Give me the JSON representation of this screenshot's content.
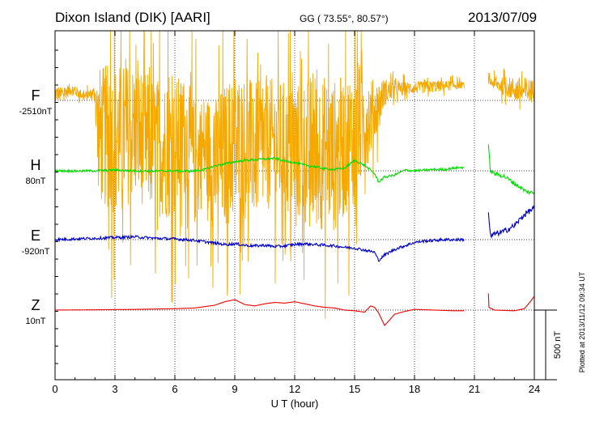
{
  "chart_data": {
    "type": "line",
    "title": "Dixon Island (DIK)  [AARI]",
    "coordinates": "GG ( 73.55°,  80.57°)",
    "date": "2013/07/09",
    "xlabel": "U T (hour)",
    "xlim": [
      0,
      24
    ],
    "xticks": [
      0,
      3,
      6,
      9,
      12,
      15,
      18,
      21,
      24
    ],
    "xtick_labels": [
      "0",
      "3",
      "6",
      "9",
      "12",
      "15",
      "18",
      "21",
      "24"
    ],
    "scale_bar": "500 nT",
    "plotted_note": "Plotted at 2013/11/12 09:34 UT",
    "grid": true,
    "series": [
      {
        "name": "F",
        "baseline": "-2510nT",
        "color": "#f5a800",
        "style": "noisy",
        "x": [
          0,
          0.3,
          0.8,
          1.5,
          2.0,
          2.2,
          3,
          4,
          5,
          6,
          6.5,
          7,
          7.5,
          8,
          9,
          10,
          11,
          12,
          13,
          14,
          15,
          15.5,
          16,
          16.5,
          17,
          18,
          19,
          20,
          20.5
        ],
        "y": [
          50,
          40,
          80,
          30,
          60,
          -250,
          -280,
          -220,
          -330,
          -350,
          -250,
          -450,
          -330,
          -480,
          -320,
          -360,
          -300,
          -380,
          -360,
          -400,
          -250,
          -150,
          -80,
          60,
          80,
          90,
          100,
          110,
          110
        ],
        "amp": [
          120,
          100,
          80,
          60,
          80,
          900,
          1000,
          900,
          900,
          950,
          800,
          850,
          700,
          900,
          1000,
          900,
          850,
          900,
          1050,
          1000,
          900,
          700,
          400,
          180,
          100,
          80,
          80,
          60,
          40
        ],
        "gap": [
          20.5,
          21.7
        ],
        "x2": [
          21.7,
          22,
          22.5,
          23,
          23.5,
          24
        ],
        "y2": [
          140,
          120,
          100,
          80,
          60,
          80
        ],
        "amp2": [
          50,
          80,
          120,
          160,
          200,
          120
        ]
      },
      {
        "name": "H",
        "baseline": "80nT",
        "color": "#00dd00",
        "x": [
          0,
          1,
          2,
          3,
          4,
          5,
          6,
          6.5,
          7,
          7.5,
          8,
          8.5,
          9,
          9.5,
          10,
          10.5,
          11,
          11.5,
          12,
          12.5,
          13,
          13.5,
          14,
          14.5,
          15,
          15.5,
          16,
          16.2,
          16.5,
          17,
          17.5,
          18,
          18.5,
          19,
          19.5,
          20,
          20.5
        ],
        "y": [
          0,
          -2,
          0,
          5,
          0,
          -2,
          0,
          -2,
          -1,
          10,
          35,
          50,
          65,
          75,
          80,
          85,
          90,
          70,
          60,
          40,
          30,
          15,
          10,
          20,
          75,
          40,
          -20,
          -80,
          -45,
          -30,
          5,
          0,
          5,
          10,
          10,
          20,
          25
        ],
        "noise": 8,
        "gap": [
          20.5,
          21.7
        ],
        "x2": [
          21.7,
          21.8,
          22,
          22.5,
          23,
          23.3,
          23.6,
          24
        ],
        "y2": [
          180,
          0,
          -20,
          -40,
          -90,
          -120,
          -150,
          -160
        ],
        "noise2": 15
      },
      {
        "name": "E",
        "baseline": "-920nT",
        "color": "#0000cc",
        "x": [
          0,
          1,
          2,
          3,
          4,
          5,
          6,
          6.5,
          7,
          7.5,
          8,
          8.5,
          9,
          9.5,
          10,
          10.5,
          11,
          11.5,
          12,
          12.5,
          13,
          13.5,
          14,
          14.5,
          15,
          15.5,
          16,
          16.2,
          16.5,
          17,
          17.5,
          18,
          18.5,
          19,
          19.5,
          20,
          20.5
        ],
        "y": [
          0,
          5,
          10,
          15,
          20,
          10,
          5,
          0,
          -5,
          -15,
          -25,
          -35,
          -30,
          -40,
          -45,
          -40,
          -50,
          -45,
          -35,
          -30,
          -35,
          -40,
          -45,
          -55,
          -60,
          -75,
          -90,
          -150,
          -110,
          -70,
          -45,
          -20,
          -10,
          -5,
          0,
          0,
          0
        ],
        "noise": 10,
        "gap": [
          20.5,
          21.7
        ],
        "x2": [
          21.7,
          21.8,
          22,
          22.5,
          23,
          23.5,
          24
        ],
        "y2": [
          200,
          20,
          40,
          60,
          100,
          180,
          230
        ],
        "noise2": 20
      },
      {
        "name": "Z",
        "baseline": "10nT",
        "color": "#ee0000",
        "x": [
          0,
          2,
          4,
          6,
          7,
          7.5,
          8,
          8.5,
          9,
          9.5,
          10,
          10.5,
          11,
          11.5,
          12,
          12.5,
          13,
          13.5,
          14,
          14.5,
          15,
          15.5,
          15.8,
          16,
          16.2,
          16.5,
          16.7,
          17,
          17.5,
          18,
          19,
          20,
          20.5
        ],
        "y": [
          0,
          2,
          5,
          10,
          15,
          25,
          35,
          60,
          75,
          40,
          30,
          45,
          55,
          50,
          60,
          45,
          30,
          20,
          15,
          0,
          -5,
          -15,
          30,
          20,
          -20,
          -110,
          -80,
          -30,
          -10,
          5,
          0,
          -5,
          -5
        ],
        "noise": 0,
        "gap": [
          20.5,
          21.7
        ],
        "x2": [
          21.7,
          21.72,
          22,
          23,
          23.5,
          23.8,
          24
        ],
        "y2": [
          120,
          20,
          0,
          -5,
          10,
          60,
          100
        ],
        "noise2": 0
      }
    ],
    "scale_nt_per_500": 500
  }
}
